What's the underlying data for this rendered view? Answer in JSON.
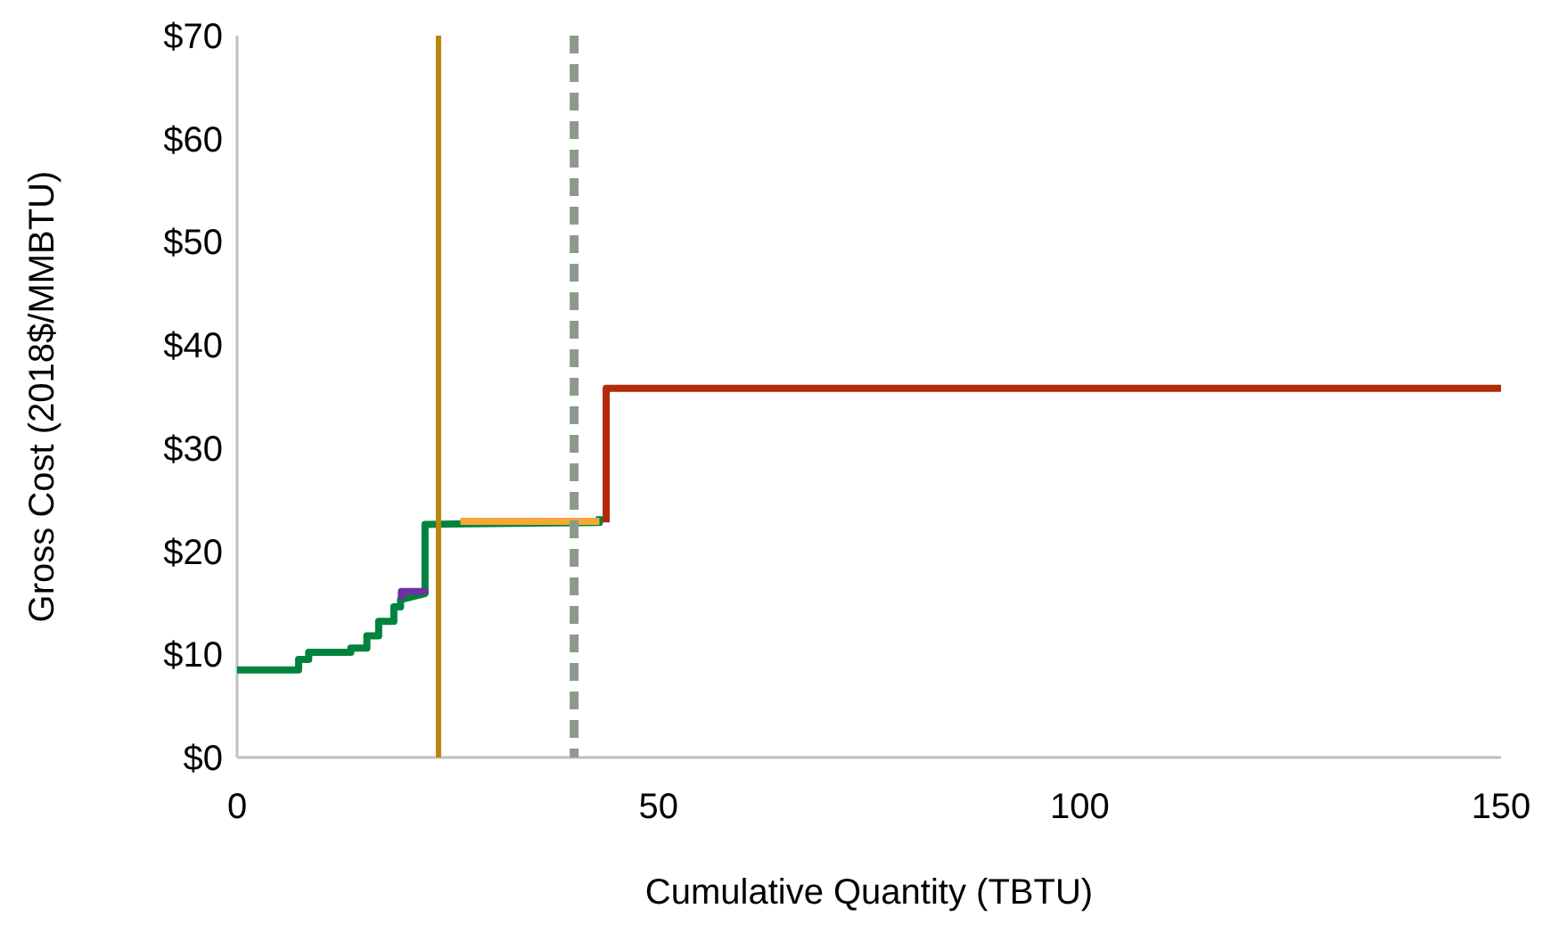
{
  "chart_data": {
    "type": "line",
    "xlabel": "Cumulative Quantity (TBTU)",
    "ylabel": "Gross Cost (2018$/MMBTU)",
    "xlim": [
      0,
      150
    ],
    "xticks": [
      0,
      50,
      100,
      150
    ],
    "ylim": [
      0,
      70
    ],
    "yticks": [
      {
        "value": 0,
        "label": "$0"
      },
      {
        "value": 10,
        "label": "$10"
      },
      {
        "value": 20,
        "label": "$20"
      },
      {
        "value": 30,
        "label": "$30"
      },
      {
        "value": 40,
        "label": "$40"
      },
      {
        "value": 50,
        "label": "$50"
      },
      {
        "value": 60,
        "label": "$60"
      },
      {
        "value": 70,
        "label": "$70"
      }
    ],
    "grid": false,
    "marker": "none",
    "line_style": "solid",
    "series": [
      {
        "color": "#00843d",
        "x": [
          0,
          7.3,
          7.3,
          8.5,
          8.5,
          13.5,
          13.5,
          15.4,
          15.4,
          16.8,
          16.8,
          18.6,
          18.6,
          19.4,
          19.4,
          22.3,
          22.3,
          43,
          43
        ],
        "values": [
          8.5,
          8.5,
          9.5,
          9.5,
          10.2,
          10.2,
          10.6,
          10.6,
          11.8,
          11.8,
          13.2,
          13.2,
          14.6,
          14.6,
          15.3,
          15.9,
          22.6,
          22.8,
          23.4
        ]
      },
      {
        "color": "#7030a0",
        "x": [
          19.5,
          19.5,
          22.3,
          22.3
        ],
        "values": [
          15.3,
          16.1,
          16.1,
          15.9
        ]
      },
      {
        "color": "#f7a738",
        "x": [
          26.5,
          43
        ],
        "values": [
          22.9,
          22.9
        ]
      },
      {
        "color": "#b22a0a",
        "x": [
          43.8,
          43.8,
          150
        ],
        "values": [
          22.8,
          35.8,
          35.8
        ]
      }
    ],
    "ref_lines": [
      {
        "axis": "x",
        "value": 23.9,
        "color": "#b8860b",
        "line_style": "solid"
      },
      {
        "axis": "x",
        "value": 40,
        "color": "#8c9a8c",
        "line_style": "dashed"
      }
    ]
  }
}
